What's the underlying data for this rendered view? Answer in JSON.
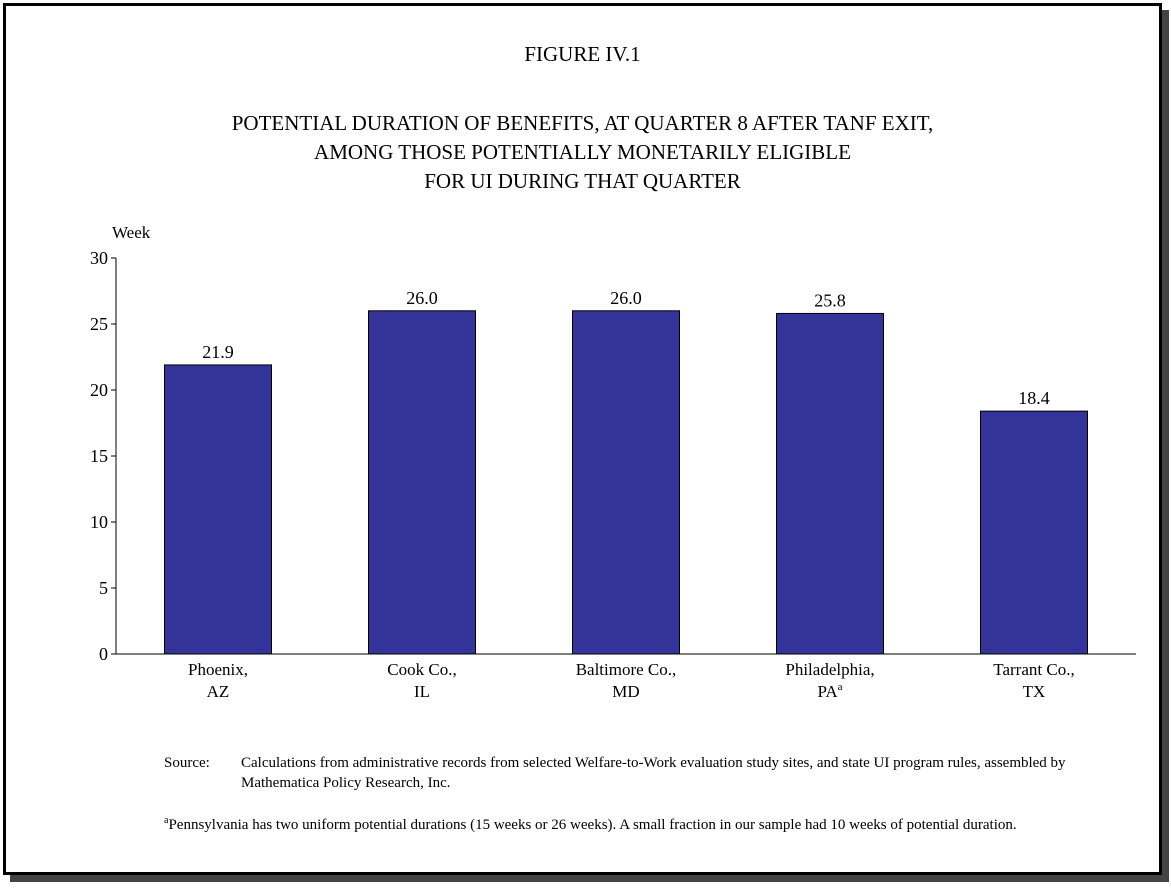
{
  "figure_label": "FIGURE IV.1",
  "title_lines": [
    "POTENTIAL DURATION OF BENEFITS, AT QUARTER 8 AFTER TANF EXIT,",
    "AMONG THOSE POTENTIALLY MONETARILY ELIGIBLE",
    "FOR UI DURING THAT QUARTER"
  ],
  "chart_data": {
    "type": "bar",
    "ylabel": "Week",
    "ylim": [
      0,
      30
    ],
    "yticks": [
      0,
      5,
      10,
      15,
      20,
      25,
      30
    ],
    "categories": [
      {
        "line1": "Phoenix,",
        "line2": "AZ",
        "sup": ""
      },
      {
        "line1": "Cook Co.,",
        "line2": "IL",
        "sup": ""
      },
      {
        "line1": "Baltimore Co.,",
        "line2": "MD",
        "sup": ""
      },
      {
        "line1": "Philadelphia,",
        "line2": "PA",
        "sup": "a"
      },
      {
        "line1": "Tarrant Co.,",
        "line2": "TX",
        "sup": ""
      }
    ],
    "values": [
      21.9,
      26.0,
      26.0,
      25.8,
      18.4
    ],
    "data_labels": [
      "21.9",
      "26.0",
      "26.0",
      "25.8",
      "18.4"
    ],
    "bar_color": "#333399",
    "grid": false,
    "legend": "none"
  },
  "source_label": "Source:",
  "source_text": "Calculations from administrative records from selected Welfare-to-Work evaluation study sites, and state UI program rules, assembled by Mathematica Policy Research, Inc.",
  "footnote_marker": "a",
  "footnote_text": "Pennsylvania has two uniform potential durations (15 weeks or 26 weeks).  A small fraction in our sample had 10 weeks of potential duration."
}
